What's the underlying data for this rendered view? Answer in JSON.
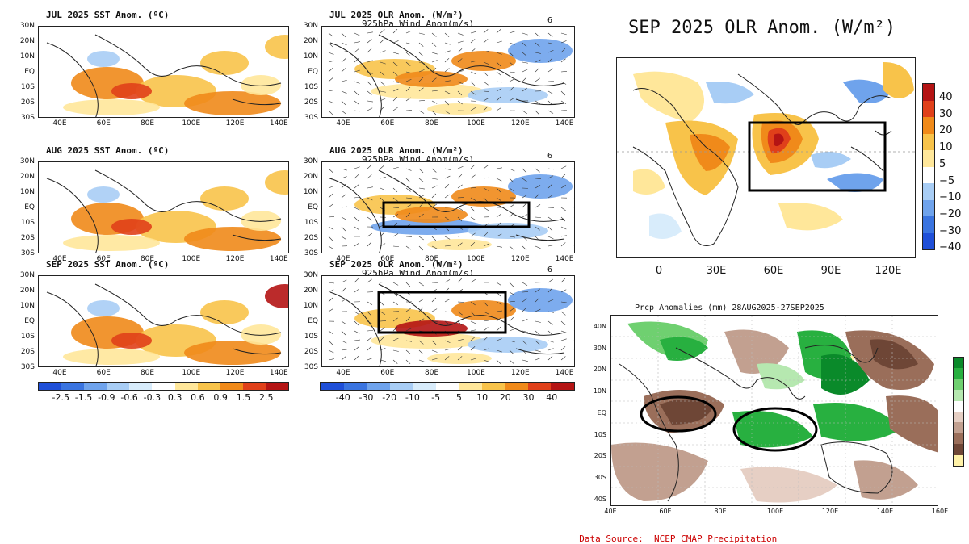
{
  "sst": {
    "titles": [
      "JUL 2025 SST Anom. (ºC)",
      "AUG 2025 SST Anom. (ºC)",
      "SEP 2025 SST Anom. (ºC)"
    ],
    "lat_labels": [
      "30N",
      "20N",
      "10N",
      "EQ",
      "10S",
      "20S",
      "30S"
    ],
    "lon_labels": [
      "40E",
      "60E",
      "80E",
      "100E",
      "120E",
      "140E"
    ],
    "colorbar_labels": [
      "-2.5",
      "-1.5",
      "-0.9",
      "-0.6",
      "-0.3",
      "0.3",
      "0.6",
      "0.9",
      "1.5",
      "2.5"
    ],
    "colorbar_colors": [
      "#1f4fd8",
      "#3a74e0",
      "#6fa3ec",
      "#a8cdf5",
      "#d8ecfb",
      "#ffffff",
      "#ffe79a",
      "#f8c34a",
      "#f08a1a",
      "#e0401a",
      "#b41414"
    ]
  },
  "olr": {
    "titles": [
      "JUL 2025 OLR Anom. (W/m²)",
      "AUG 2025 OLR Anom. (W/m²)",
      "SEP 2025 OLR Anom. (W/m²)"
    ],
    "subtitle": "925hPa Wind Anom(m/s)",
    "ref_vector": "6",
    "lat_labels": [
      "30N",
      "20N",
      "10N",
      "EQ",
      "10S",
      "20S",
      "30S"
    ],
    "lon_labels": [
      "40E",
      "60E",
      "80E",
      "100E",
      "120E",
      "140E"
    ],
    "colorbar_labels": [
      "-40",
      "-30",
      "-20",
      "-10",
      "-5",
      "5",
      "10",
      "20",
      "30",
      "40"
    ],
    "colorbar_colors": [
      "#1f4fd8",
      "#3a74e0",
      "#6fa3ec",
      "#a8cdf5",
      "#d8ecfb",
      "#ffffff",
      "#ffe79a",
      "#f8c34a",
      "#f08a1a",
      "#e0401a",
      "#b41414"
    ]
  },
  "sep_olr": {
    "title": "SEP 2025 OLR Anom. (W/m²)",
    "lon_labels": [
      "0",
      "30E",
      "60E",
      "90E",
      "120E"
    ],
    "colorbar_labels": [
      "40",
      "30",
      "20",
      "10",
      "5",
      "−5",
      "−10",
      "−20",
      "−30",
      "−40"
    ],
    "colorbar_colors": [
      "#b41414",
      "#e0401a",
      "#f08a1a",
      "#f8c34a",
      "#ffe79a",
      "#ffffff",
      "#a8cdf5",
      "#6fa3ec",
      "#3a74e0",
      "#1f4fd8"
    ]
  },
  "precip": {
    "title": "Prcp Anomalies (mm) 28AUG2025-27SEP2025",
    "lat_labels": [
      "40N",
      "30N",
      "20N",
      "10N",
      "EQ",
      "10S",
      "20S",
      "30S",
      "40S"
    ],
    "lon_labels": [
      "40E",
      "60E",
      "80E",
      "100E",
      "120E",
      "140E",
      "160E"
    ],
    "colorbar_colors": [
      "#0a8a2a",
      "#28b040",
      "#6fd070",
      "#b6e8b0",
      "#ffffff",
      "#e6cfc4",
      "#c2a090",
      "#9a6e5a",
      "#6e4636",
      "#fff2a8"
    ]
  },
  "source": "Data Source:  NCEP CMAP Precipitation"
}
